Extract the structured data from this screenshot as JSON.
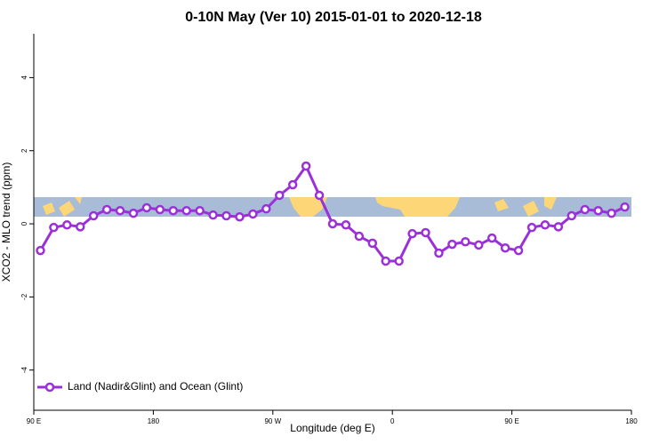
{
  "chart_data": {
    "type": "line",
    "title": "0-10N May (Ver 10)   2015-01-01 to 2020-12-18",
    "x_label": "Longitude (deg E)",
    "y_label": "XCO2 - MLO trend (ppm)",
    "x": [
      95,
      105,
      115,
      125,
      135,
      145,
      155,
      165,
      175,
      185,
      195,
      205,
      215,
      225,
      235,
      245,
      255,
      265,
      275,
      285,
      295,
      305,
      315,
      325,
      335,
      345,
      355,
      365,
      375,
      385,
      395,
      405,
      415,
      425,
      435,
      445,
      455,
      465,
      475,
      485,
      495,
      505,
      515,
      525,
      535
    ],
    "series": [
      {
        "name": "Land (Nadir&Glint) and Ocean (Glint)",
        "color": "#9b30d9",
        "values": [
          -0.73,
          -0.1,
          -0.03,
          -0.08,
          0.22,
          0.39,
          0.36,
          0.29,
          0.44,
          0.39,
          0.36,
          0.36,
          0.36,
          0.24,
          0.22,
          0.19,
          0.27,
          0.41,
          0.78,
          1.07,
          1.58,
          0.78,
          0,
          -0.03,
          -0.34,
          -0.53,
          -1.02,
          -1.02,
          -0.27,
          -0.24,
          -0.8,
          -0.56,
          -0.49,
          -0.58,
          -0.39,
          -0.66,
          -0.73,
          -0.1,
          -0.03,
          -0.08,
          0.22,
          0.39,
          0.36,
          0.29,
          0.46
        ]
      }
    ],
    "xlim": [
      90,
      540
    ],
    "xticks": [
      {
        "value": 90,
        "label": "90 E"
      },
      180,
      {
        "value": 270,
        "label": "90 W"
      },
      {
        "value": 360,
        "label": "0"
      },
      {
        "value": 450,
        "label": "90 E"
      },
      {
        "value": 540,
        "label": "180"
      }
    ],
    "ylim": [
      -5.1,
      5.2
    ],
    "yticks": [
      -4,
      -2,
      0,
      2,
      4
    ],
    "legend_position": "bottom-left"
  }
}
